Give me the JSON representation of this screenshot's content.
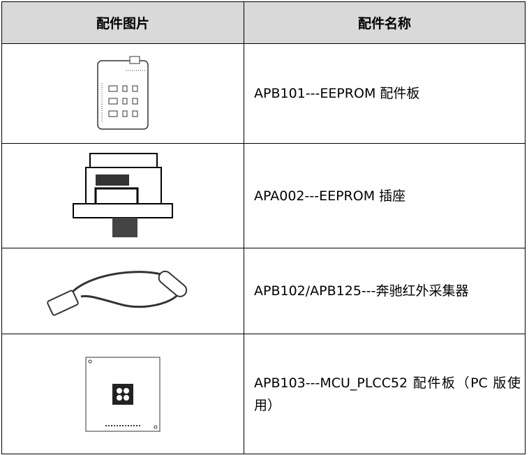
{
  "table": {
    "header": [
      "配件图片",
      "配件名称"
    ],
    "rows": [
      "APB101---EEPROM 配件板",
      "APA002---EEPROM 插座",
      "APB102/APB125---奔驰红外采集器",
      "APB103---MCU_PLCC52 配件板（PC 版使用）"
    ]
  }
}
